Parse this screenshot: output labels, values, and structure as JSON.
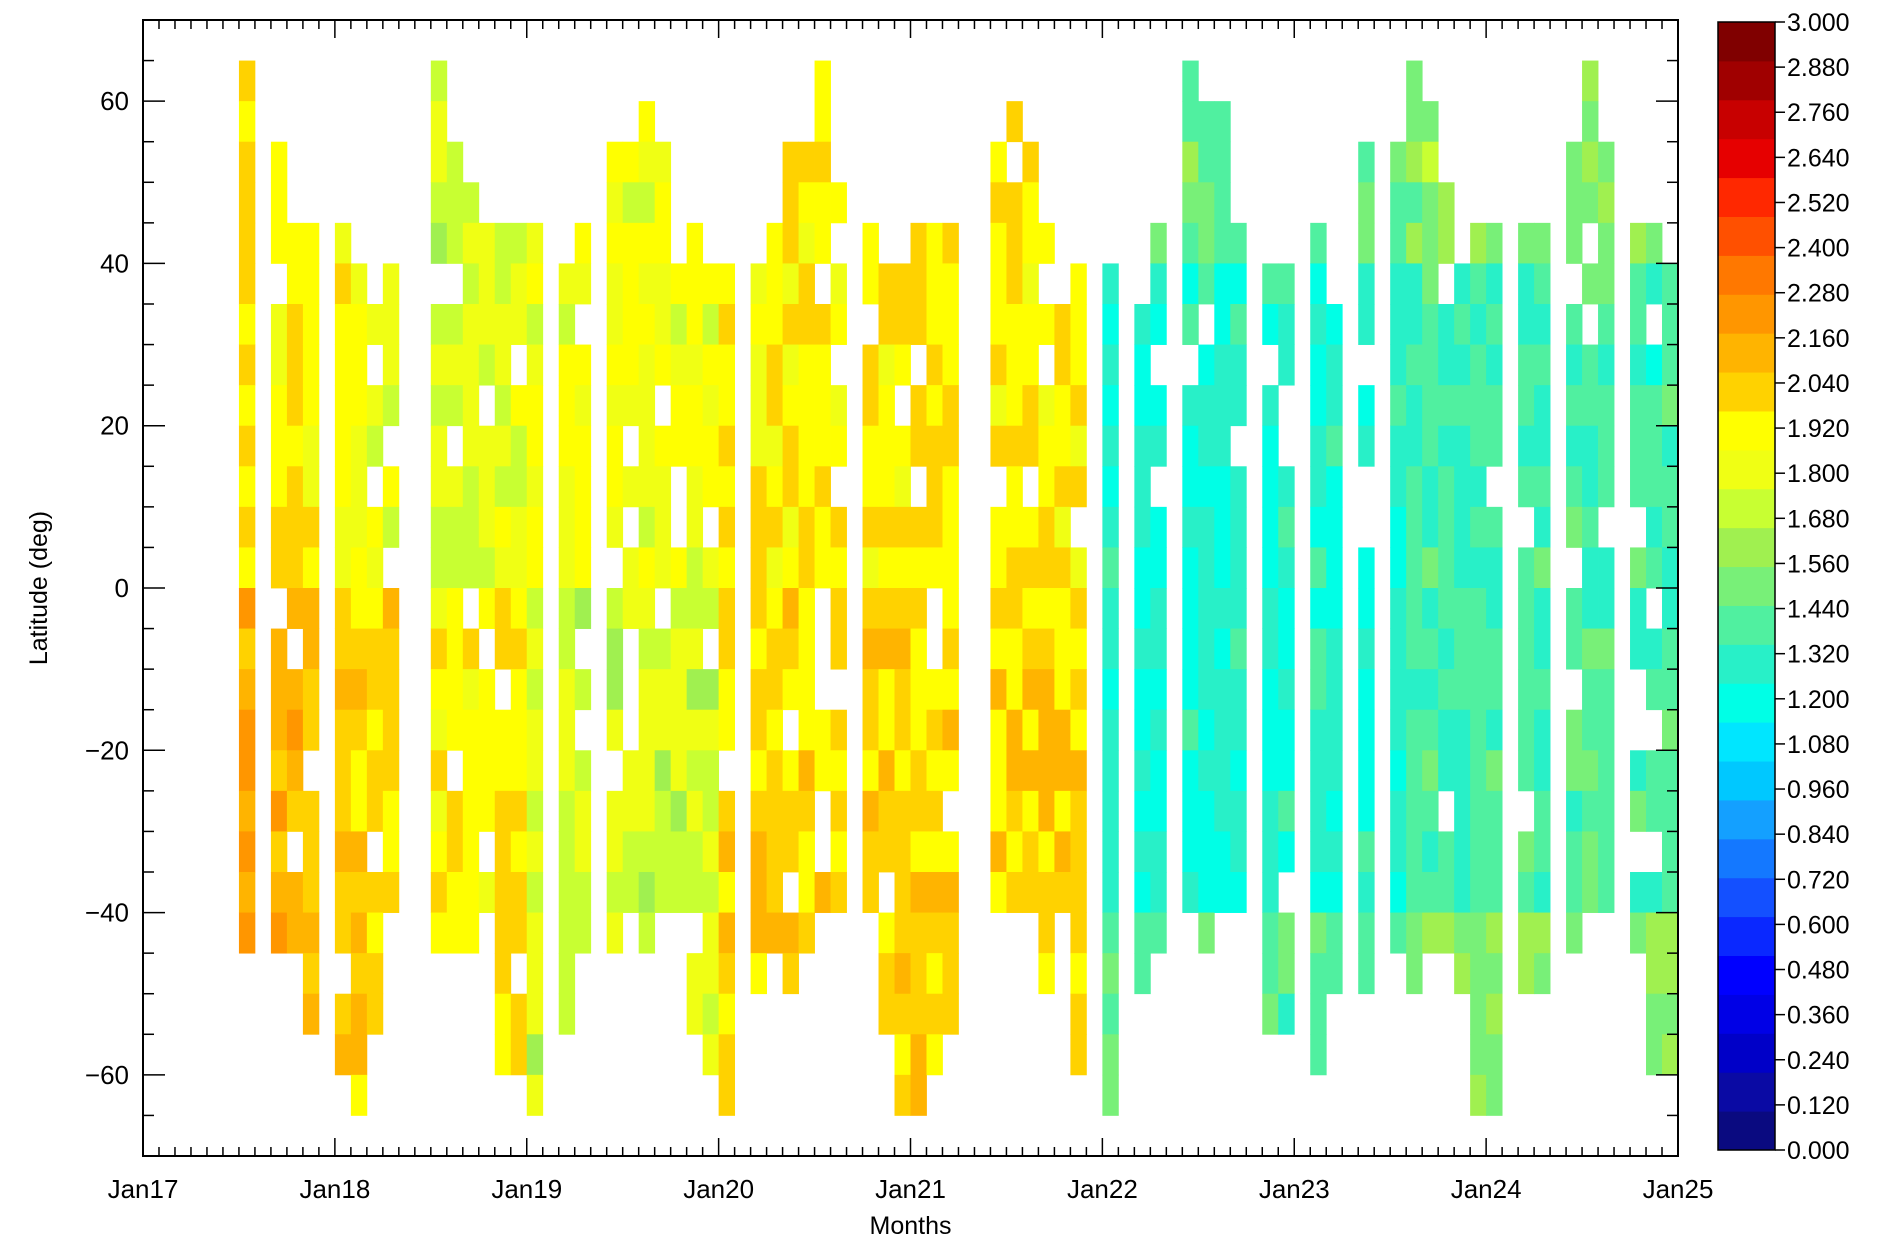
{
  "chart_data": {
    "type": "heatmap",
    "title": "",
    "xlabel": "Months",
    "ylabel": "Latitude (deg)",
    "x_ticks": [
      "Jan17",
      "Jan18",
      "Jan19",
      "Jan20",
      "Jan21",
      "Jan22",
      "Jan23",
      "Jan24",
      "Jan25"
    ],
    "y_ticks": [
      60,
      40,
      20,
      0,
      -20,
      -40,
      -60
    ],
    "ylim": [
      -70,
      70
    ],
    "xlim": [
      "Jan17",
      "Jan25"
    ],
    "grid": false,
    "colorbar": {
      "placement": "right",
      "min": 0.0,
      "max": 3.0,
      "step": 0.12,
      "labels": [
        "3.000",
        "2.880",
        "2.760",
        "2.640",
        "2.520",
        "2.400",
        "2.280",
        "2.160",
        "2.040",
        "1.920",
        "1.800",
        "1.680",
        "1.560",
        "1.440",
        "1.320",
        "1.200",
        "1.080",
        "0.960",
        "0.840",
        "0.720",
        "0.600",
        "0.480",
        "0.360",
        "0.240",
        "0.120",
        "0.000"
      ],
      "colors": [
        "#0a0a80",
        "#0a0aa4",
        "#0000c8",
        "#0000e6",
        "#0000ff",
        "#0a28ff",
        "#1450ff",
        "#1478ff",
        "#14a0ff",
        "#00c8ff",
        "#00e6ff",
        "#00ffe6",
        "#28f0c8",
        "#50f0a0",
        "#78f078",
        "#a0f050",
        "#c8ff32",
        "#f0ff14",
        "#ffff00",
        "#ffd200",
        "#ffb400",
        "#ff9600",
        "#ff7800",
        "#ff5000",
        "#ff2800",
        "#e60000",
        "#c80000",
        "#a00000",
        "#800000"
      ]
    },
    "bin": {
      "months_per_column": 1,
      "lat_step_deg": 5
    },
    "series_note": "",
    "seasonal_model": {
      "period_months": 12,
      "start_month_offset": 0
    }
  }
}
